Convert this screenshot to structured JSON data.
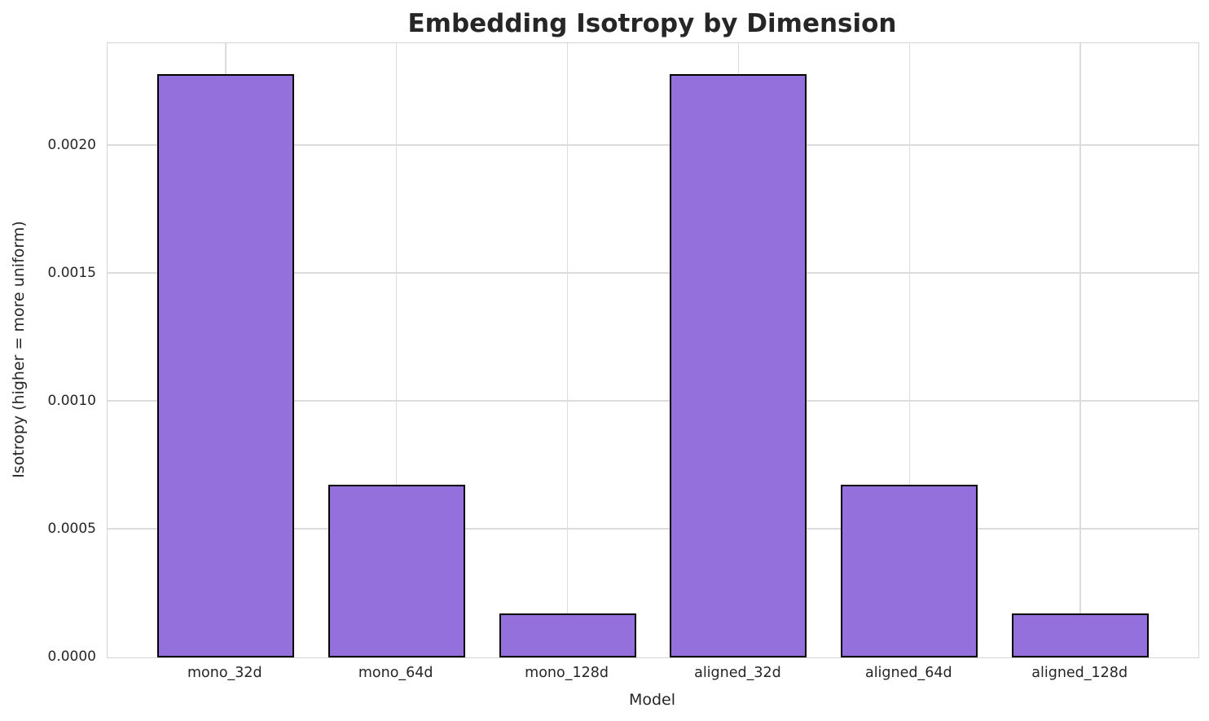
{
  "chart_data": {
    "type": "bar",
    "title": "Embedding Isotropy by Dimension",
    "xlabel": "Model",
    "ylabel": "Isotropy (higher = more uniform)",
    "categories": [
      "mono_32d",
      "mono_64d",
      "mono_128d",
      "aligned_32d",
      "aligned_64d",
      "aligned_128d"
    ],
    "values": [
      0.00228,
      0.000675,
      0.000172,
      0.00228,
      0.000675,
      0.000172
    ],
    "ylim": [
      0,
      0.0024
    ],
    "yticks": [
      {
        "value": 0.0,
        "label": "0.0000"
      },
      {
        "value": 0.0005,
        "label": "0.0005"
      },
      {
        "value": 0.001,
        "label": "0.0010"
      },
      {
        "value": 0.0015,
        "label": "0.0015"
      },
      {
        "value": 0.002,
        "label": "0.0020"
      }
    ],
    "grid": true,
    "legend": null,
    "colors": {
      "bar_fill": "#9370DB",
      "bar_edge": "#000000",
      "grid": "#dcdcdc",
      "spine": "#d4d4d4",
      "text": "#262626",
      "background": "#ffffff"
    }
  }
}
